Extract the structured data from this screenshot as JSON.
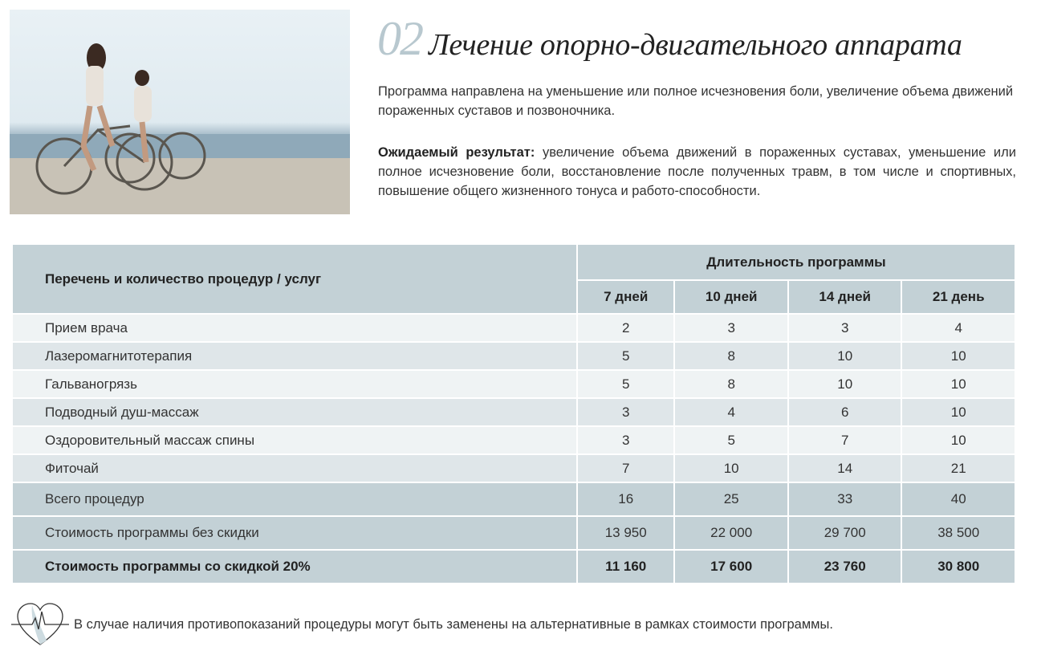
{
  "header": {
    "number": "02",
    "title": "Лечение опорно-двигательного аппарата"
  },
  "intro": "Программа направлена на уменьшение или полное исчезновения боли, увеличение объема движений пораженных суставов и позвоночника.",
  "result": {
    "label": "Ожидаемый результат:",
    "text": " увеличение объема движений в пораженных суставах, уменьшение или полное исчезновение боли, восстановление после полученных травм, в том числе и спортивных, повышение общего жизненного тонуса и работо-способности."
  },
  "table": {
    "col_header": "Перечень и количество процедур / услуг",
    "group_header": "Длительность программы",
    "durations": [
      "7 дней",
      "10 дней",
      "14 дней",
      "21 день"
    ],
    "rows": [
      {
        "name": "Прием врача",
        "values": [
          "2",
          "3",
          "3",
          "4"
        ]
      },
      {
        "name": "Лазеромагнитотерапия",
        "values": [
          "5",
          "8",
          "10",
          "10"
        ]
      },
      {
        "name": "Гальваногрязь",
        "values": [
          "5",
          "8",
          "10",
          "10"
        ]
      },
      {
        "name": "Подводный душ-массаж",
        "values": [
          "3",
          "4",
          "6",
          "10"
        ]
      },
      {
        "name": "Оздоровительный массаж спины",
        "values": [
          "3",
          "5",
          "7",
          "10"
        ]
      },
      {
        "name": "Фиточай",
        "values": [
          "7",
          "10",
          "14",
          "21"
        ]
      }
    ],
    "total": {
      "name": "Всего процедур",
      "values": [
        "16",
        "25",
        "33",
        "40"
      ]
    },
    "price": {
      "name": "Стоимость программы без скидки",
      "values": [
        "13 950",
        "22 000",
        "29 700",
        "38 500"
      ]
    },
    "discount": {
      "name": "Стоимость программы со скидкой 20%",
      "values": [
        "11 160",
        "17 600",
        "23 760",
        "30 800"
      ]
    }
  },
  "note": "В случае наличия противопоказаний процедуры могут быть заменены на альтернативные в рамках стоимости программы.",
  "colors": {
    "header": "#c3d1d6",
    "row_light": "#eff3f4",
    "row_dark": "#dfe6e9",
    "accent": "#b8c8cf"
  }
}
